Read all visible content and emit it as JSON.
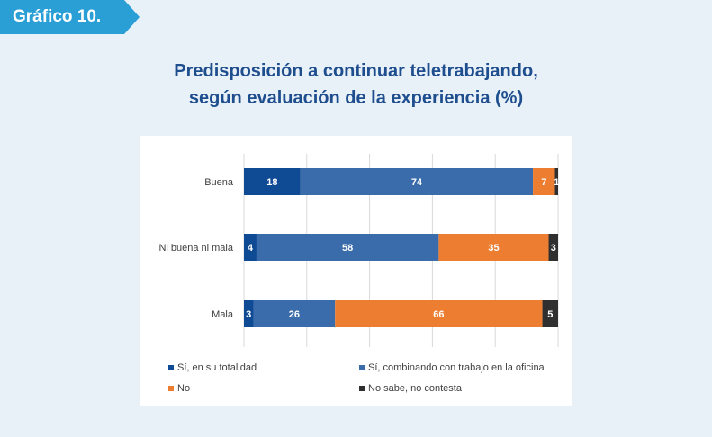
{
  "badge": {
    "label": "Gráfico 10."
  },
  "title": {
    "line1": "Predisposición  a continuar teletrabajando,",
    "line2": "según evaluación de la experiencia  (%)"
  },
  "chart_data": {
    "type": "bar",
    "orientation": "horizontal",
    "stacked": true,
    "categories": [
      "Buena",
      "Ni buena ni mala",
      "Mala"
    ],
    "series": [
      {
        "name": "Sí, en su totalidad",
        "color": "#0f4a95",
        "values": [
          18,
          4,
          3
        ]
      },
      {
        "name": "Sí, combinando con trabajo en la oficina",
        "color": "#3a6baa",
        "values": [
          74,
          58,
          26
        ]
      },
      {
        "name": "No",
        "color": "#ed7d31",
        "values": [
          7,
          35,
          66
        ]
      },
      {
        "name": "No sabe, no contesta",
        "color": "#2f2f2f",
        "values": [
          1,
          3,
          5
        ]
      }
    ],
    "xlim": [
      0,
      100
    ],
    "grid": true,
    "legend_position": "bottom"
  }
}
